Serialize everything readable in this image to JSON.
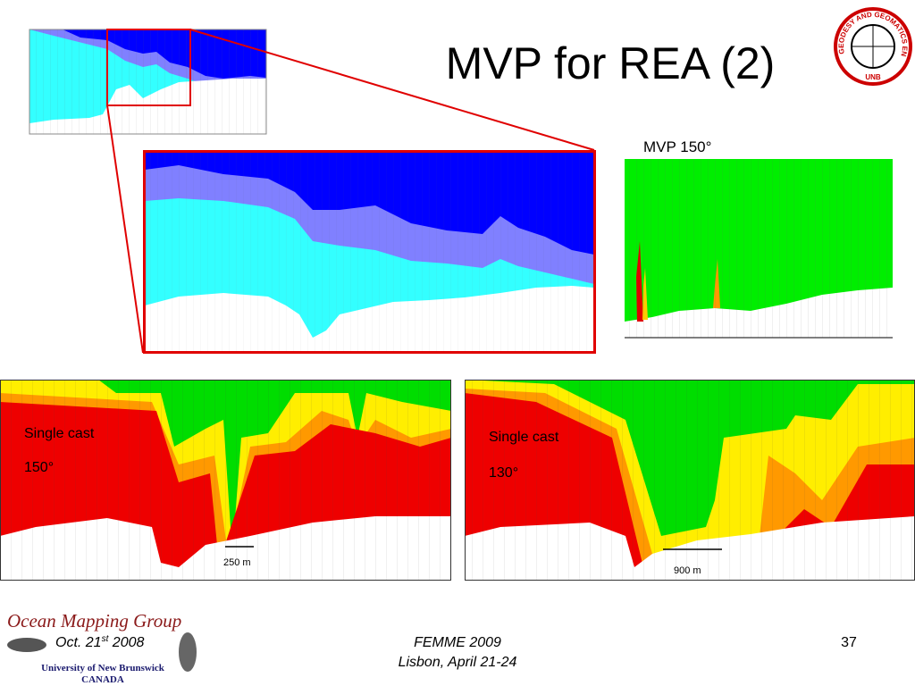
{
  "title": "MVP for REA (2)",
  "logo": {
    "ring": "GEODESY AND GEOMATICS ENGINEERING",
    "bottom": "UNB"
  },
  "panels": {
    "mvp_label": "MVP 150°",
    "left": {
      "label1": "Single cast",
      "label2": "150°",
      "scale": "250 m"
    },
    "right": {
      "label1": "Single cast",
      "label2": "130°",
      "scale": "900 m"
    }
  },
  "footer": {
    "group": "Ocean Mapping Group",
    "date": {
      "day": "Oct. 21",
      "sup": "st",
      "year": " 2008"
    },
    "university": "University of New Brunswick",
    "country": "CANADA",
    "event": "FEMME 2009",
    "place": "Lisbon, April 21-24",
    "page": "37"
  }
}
